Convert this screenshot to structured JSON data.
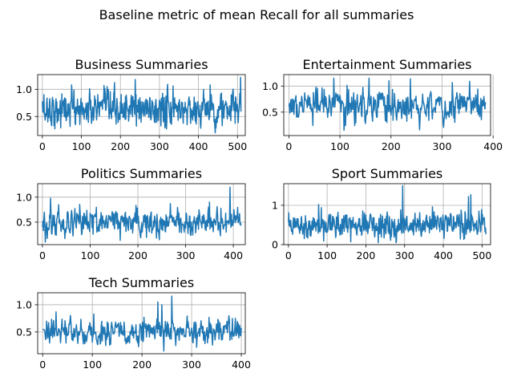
{
  "chart_data": {
    "suptitle": "Baseline metric of mean Recall for all summaries",
    "series_color": "#1f77b4",
    "grid": true,
    "panels": [
      {
        "title": "Business Summaries",
        "type": "line",
        "n_points": 510,
        "xlim": [
          -12,
          520
        ],
        "ylim": [
          0.15,
          1.27
        ],
        "xticks": [
          0,
          100,
          200,
          300,
          400,
          500
        ],
        "yticks": [
          0.5,
          1.0
        ],
        "ytick_labels": [
          "0.5",
          "1.0"
        ],
        "mean": 0.63,
        "spread": 0.17,
        "min": 0.2,
        "max": 1.22,
        "peaks": [
          [
            238,
            1.18
          ],
          [
            508,
            1.22
          ],
          [
            430,
            1.08
          ],
          [
            75,
            1.08
          ]
        ]
      },
      {
        "title": "Entertainment Summaries",
        "type": "line",
        "n_points": 386,
        "xlim": [
          -10,
          395
        ],
        "ylim": [
          0.05,
          1.22
        ],
        "xticks": [
          0,
          100,
          200,
          300,
          400
        ],
        "yticks": [
          0.5,
          1.0
        ],
        "ytick_labels": [
          "0.5",
          "1.0"
        ],
        "mean": 0.62,
        "spread": 0.17,
        "min": 0.12,
        "max": 1.17,
        "peaks": [
          [
            88,
            1.15
          ],
          [
            157,
            1.15
          ],
          [
            238,
            1.14
          ],
          [
            196,
            1.1
          ]
        ]
      },
      {
        "title": "Politics Summaries",
        "type": "line",
        "n_points": 417,
        "xlim": [
          -10,
          425
        ],
        "ylim": [
          0.05,
          1.27
        ],
        "xticks": [
          0,
          100,
          200,
          300,
          400
        ],
        "yticks": [
          0.5,
          1.0
        ],
        "ytick_labels": [
          "0.5",
          "1.0"
        ],
        "mean": 0.5,
        "spread": 0.15,
        "min": 0.1,
        "max": 1.2,
        "peaks": [
          [
            393,
            1.2
          ],
          [
            17,
            0.98
          ],
          [
            350,
            0.9
          ],
          [
            268,
            0.87
          ]
        ]
      },
      {
        "title": "Sport Summaries",
        "type": "line",
        "n_points": 511,
        "xlim": [
          -12,
          522
        ],
        "ylim": [
          0.0,
          1.55
        ],
        "xticks": [
          0,
          100,
          200,
          300,
          400,
          500
        ],
        "yticks": [
          0,
          1
        ],
        "ytick_labels": [
          "0",
          "1"
        ],
        "mean": 0.52,
        "spread": 0.18,
        "min": 0.05,
        "max": 1.5,
        "peaks": [
          [
            295,
            1.5
          ],
          [
            471,
            1.27
          ],
          [
            465,
            1.22
          ],
          [
            78,
            1.02
          ]
        ]
      },
      {
        "title": "Tech Summaries",
        "type": "line",
        "n_points": 401,
        "xlim": [
          -10,
          408
        ],
        "ylim": [
          0.1,
          1.22
        ],
        "xticks": [
          0,
          100,
          200,
          300,
          400
        ],
        "yticks": [
          0.5,
          1.0
        ],
        "ytick_labels": [
          "0.5",
          "1.0"
        ],
        "mean": 0.5,
        "spread": 0.13,
        "min": 0.15,
        "max": 1.16,
        "peaks": [
          [
            260,
            1.16
          ],
          [
            232,
            1.05
          ],
          [
            240,
            1.0
          ],
          [
            27,
            0.87
          ]
        ]
      }
    ]
  }
}
